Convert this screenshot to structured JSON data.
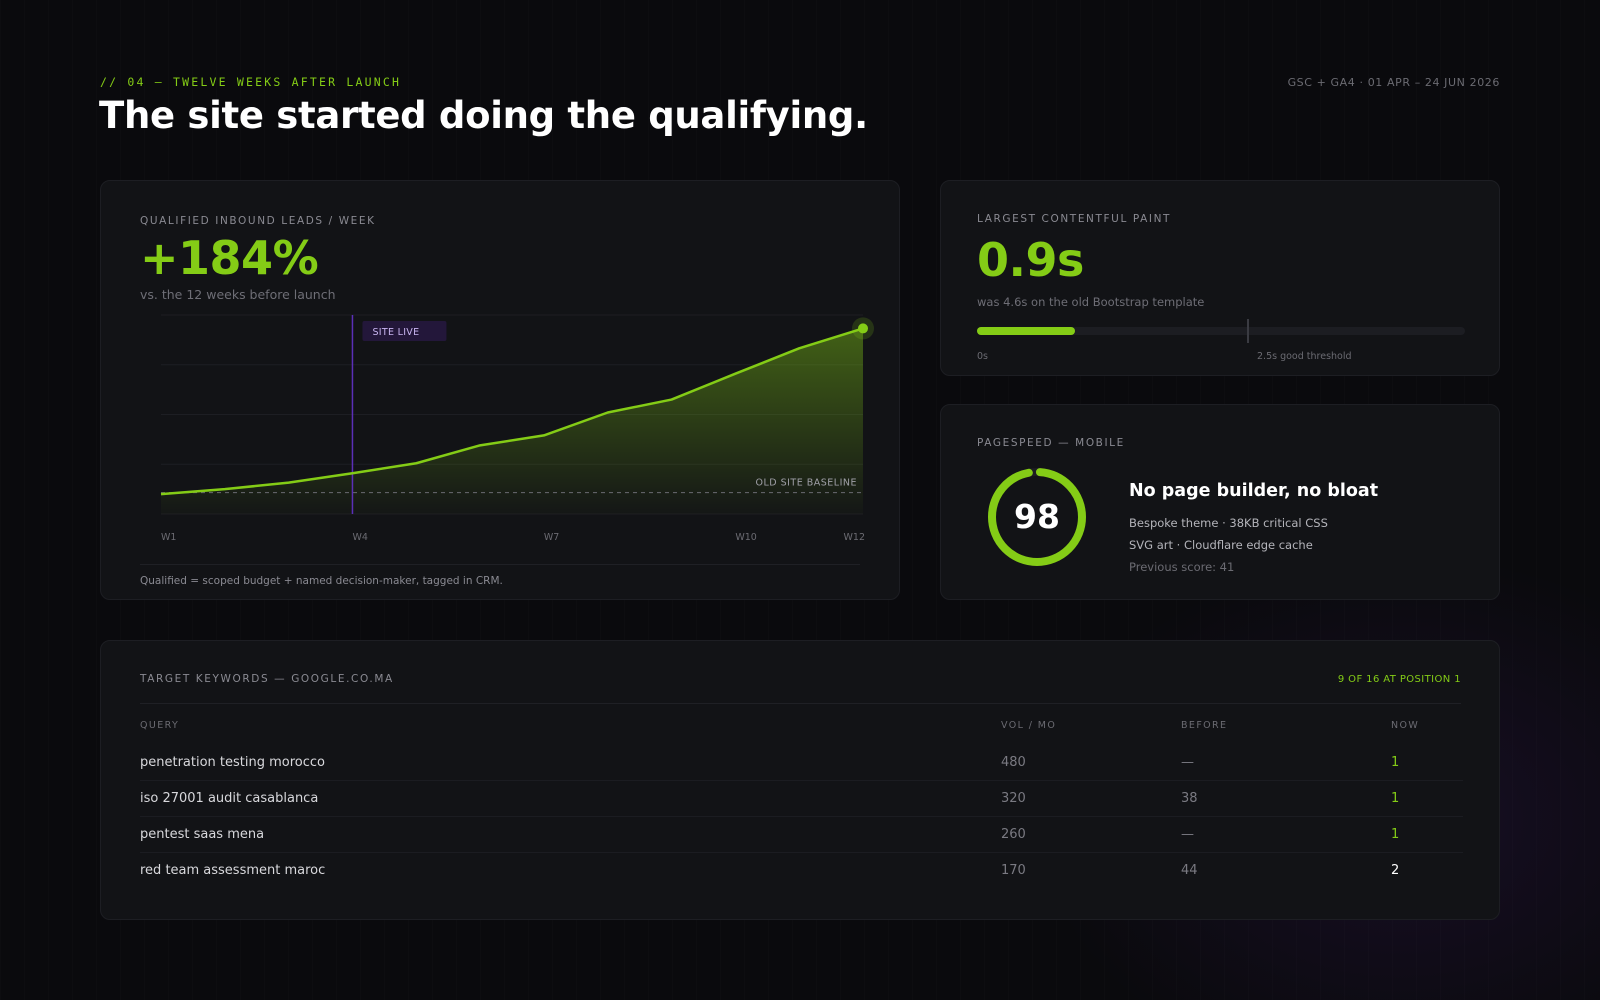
{
  "header": {
    "eyebrow": "// 04 — TWELVE WEEKS AFTER LAUNCH",
    "source": "GSC + GA4 · 01 APR – 24 JUN 2026",
    "title": "The site started doing the qualifying."
  },
  "colors": {
    "accent": "#84cc16",
    "marker": "#7c3aed",
    "background": "#0a0a0d",
    "card": "#121316"
  },
  "leads": {
    "label": "QUALIFIED INBOUND LEADS / WEEK",
    "metric": "+184%",
    "sub": "vs. the 12 weeks before launch",
    "footnote": "Qualified = scoped budget + named decision-maker, tagged in CRM."
  },
  "chart_data": {
    "type": "area",
    "x": [
      "W1",
      "W2",
      "W3",
      "W4",
      "W5",
      "W6",
      "W7",
      "W8",
      "W9",
      "W10",
      "W11",
      "W12"
    ],
    "x_tick_labels": [
      "W1",
      "W4",
      "W7",
      "W10",
      "W12"
    ],
    "values": [
      4,
      5,
      6.3,
      8.2,
      10.2,
      13.8,
      15.8,
      20.4,
      23,
      28.2,
      33.3,
      37.3
    ],
    "ylim": [
      0,
      40
    ],
    "baseline": {
      "value": 4.3,
      "label": "OLD SITE BASELINE"
    },
    "marker": {
      "x": "W4",
      "label": "SITE LIVE"
    },
    "grid": true
  },
  "lcp": {
    "label": "LARGEST CONTENTFUL PAINT",
    "metric": "0.9s",
    "sub": "was 4.6s on the old Bootstrap template",
    "value": 0.9,
    "threshold": 2.5,
    "scale_max": 4.5,
    "min_label": "0s",
    "threshold_label": "2.5s good threshold"
  },
  "pagespeed": {
    "label": "PAGESPEED — MOBILE",
    "score": "98",
    "score_value": 98,
    "heading": "No page builder, no bloat",
    "line1": "Bespoke theme · 38KB critical CSS",
    "line2": "SVG art · Cloudflare edge cache",
    "line3": "Previous score: 41"
  },
  "keywords": {
    "label": "TARGET KEYWORDS — GOOGLE.CO.MA",
    "summary": "9 OF 16 AT POSITION 1",
    "headers": {
      "query": "QUERY",
      "vol": "VOL / MO",
      "before": "BEFORE",
      "now": "NOW"
    },
    "rows": [
      {
        "query": "penetration testing morocco",
        "vol": "480",
        "before": "—",
        "now": "1"
      },
      {
        "query": "iso 27001 audit casablanca",
        "vol": "320",
        "before": "38",
        "now": "1"
      },
      {
        "query": "pentest saas mena",
        "vol": "260",
        "before": "—",
        "now": "1"
      },
      {
        "query": "red team assessment maroc",
        "vol": "170",
        "before": "44",
        "now": "2"
      }
    ]
  }
}
